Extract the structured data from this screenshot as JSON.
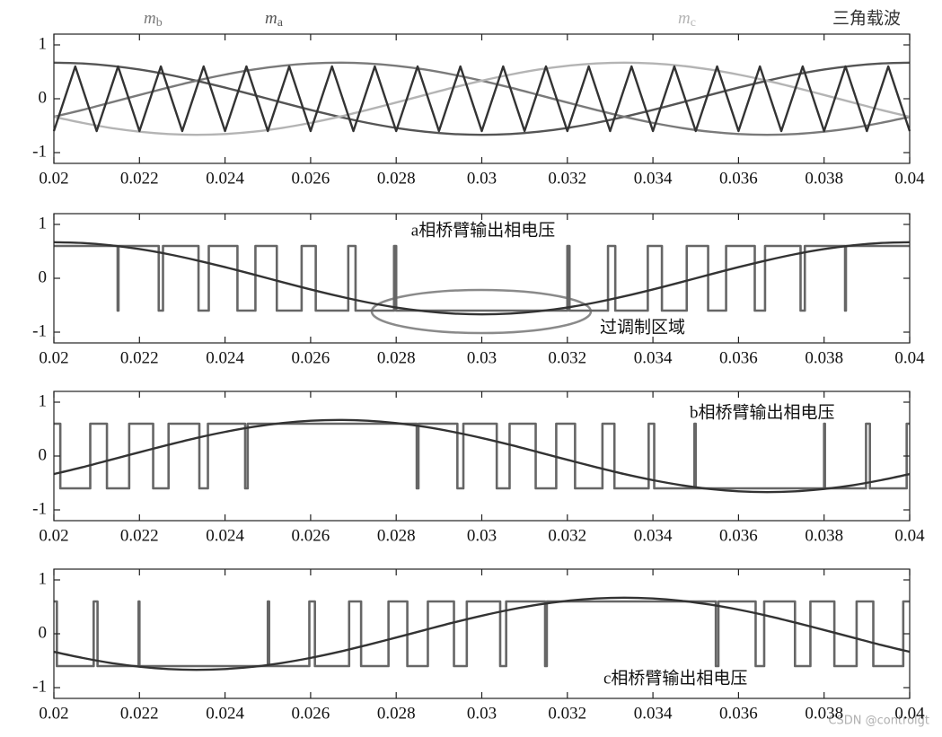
{
  "chart_data": [
    {
      "type": "line",
      "x": [
        0.02,
        0.02067,
        0.02133,
        0.022,
        0.02267,
        0.02333,
        0.024,
        0.02467,
        0.02533,
        0.026,
        0.02667,
        0.02733,
        0.028,
        0.02867,
        0.02933,
        0.03,
        0.03067,
        0.03133,
        0.032,
        0.03267,
        0.03333,
        0.034,
        0.03467,
        0.03533,
        0.036,
        0.03667,
        0.03733,
        0.038,
        0.03867,
        0.03933,
        0.04
      ],
      "series": [
        {
          "name": "ma",
          "color": "#555555",
          "values": [
            0.67,
            0.655,
            0.612,
            0.542,
            0.448,
            0.335,
            0.207,
            0.07,
            -0.07,
            -0.207,
            -0.335,
            -0.448,
            -0.542,
            -0.612,
            -0.655,
            -0.67,
            -0.655,
            -0.612,
            -0.542,
            -0.448,
            -0.335,
            -0.207,
            -0.07,
            0.07,
            0.207,
            0.335,
            0.448,
            0.542,
            0.612,
            0.655,
            0.67
          ]
        },
        {
          "name": "mb",
          "color": "#7a7a7a",
          "values": [
            -0.335,
            -0.207,
            -0.07,
            0.07,
            0.207,
            0.335,
            0.448,
            0.542,
            0.612,
            0.655,
            0.67,
            0.655,
            0.612,
            0.542,
            0.448,
            0.335,
            0.207,
            0.07,
            -0.07,
            -0.207,
            -0.335,
            -0.448,
            -0.542,
            -0.612,
            -0.655,
            -0.67,
            -0.655,
            -0.612,
            -0.542,
            -0.448,
            -0.335
          ]
        },
        {
          "name": "mc",
          "color": "#b4b4b4",
          "values": [
            -0.335,
            -0.448,
            -0.542,
            -0.612,
            -0.655,
            -0.67,
            -0.655,
            -0.612,
            -0.542,
            -0.448,
            -0.335,
            -0.207,
            -0.07,
            0.07,
            0.207,
            0.335,
            0.448,
            0.542,
            0.612,
            0.655,
            0.67,
            0.655,
            0.612,
            0.542,
            0.448,
            0.335,
            0.207,
            0.07,
            -0.07,
            -0.207,
            -0.335
          ]
        },
        {
          "name": "三角载波",
          "color": "#333333",
          "x": [
            0.02,
            0.0205,
            0.021,
            0.0215,
            0.022,
            0.0225,
            0.023,
            0.0235,
            0.024,
            0.0245,
            0.025,
            0.0255,
            0.026,
            0.0265,
            0.027,
            0.0275,
            0.028,
            0.0285,
            0.029,
            0.0295,
            0.03,
            0.0305,
            0.031,
            0.0315,
            0.032,
            0.0325,
            0.033,
            0.0335,
            0.034,
            0.0345,
            0.035,
            0.0355,
            0.036,
            0.0365,
            0.037,
            0.0375,
            0.038,
            0.0385,
            0.039,
            0.0395,
            0.04
          ],
          "values": [
            -0.6,
            0.6,
            -0.6,
            0.6,
            -0.6,
            0.6,
            -0.6,
            0.6,
            -0.6,
            0.6,
            -0.6,
            0.6,
            -0.6,
            0.6,
            -0.6,
            0.6,
            -0.6,
            0.6,
            -0.6,
            0.6,
            -0.6,
            0.6,
            -0.6,
            0.6,
            -0.6,
            0.6,
            -0.6,
            0.6,
            -0.6,
            0.6,
            -0.6,
            0.6,
            -0.6,
            0.6,
            -0.6,
            0.6,
            -0.6,
            0.6,
            -0.6,
            0.6,
            -0.6
          ]
        }
      ],
      "xlim": [
        0.02,
        0.04
      ],
      "ylim": [
        -1.2,
        1.2
      ],
      "xticks": [
        0.02,
        0.022,
        0.024,
        0.026,
        0.028,
        0.03,
        0.032,
        0.034,
        0.036,
        0.038,
        0.04
      ],
      "yticks": [
        -1,
        0,
        1
      ]
    },
    {
      "type": "line",
      "annotations": [
        "a相桥臂输出相电压",
        "过调制区域"
      ],
      "x": [
        0.02,
        0.02067,
        0.02133,
        0.022,
        0.02267,
        0.02333,
        0.024,
        0.02467,
        0.02533,
        0.026,
        0.02667,
        0.02733,
        0.028,
        0.02867,
        0.02933,
        0.03,
        0.03067,
        0.03133,
        0.032,
        0.03267,
        0.03333,
        0.034,
        0.03467,
        0.03533,
        0.036,
        0.03667,
        0.03733,
        0.038,
        0.03867,
        0.03933,
        0.04
      ],
      "series": [
        {
          "color": "#666666",
          "step": true,
          "x": [
            0.02,
            0.02149,
            0.02151,
            0.02245,
            0.02255,
            0.02338,
            0.02362,
            0.02429,
            0.02471,
            0.02521,
            0.02579,
            0.02612,
            0.02688,
            0.02705,
            0.02795,
            0.028,
            0.032,
            0.03205,
            0.03295,
            0.03312,
            0.03388,
            0.03421,
            0.03479,
            0.03529,
            0.03571,
            0.03638,
            0.03662,
            0.03745,
            0.03755,
            0.03849,
            0.03851,
            0.04
          ],
          "values": [
            0.6,
            -0.6,
            0.6,
            -0.6,
            0.6,
            -0.6,
            0.6,
            -0.6,
            0.6,
            -0.6,
            0.6,
            -0.6,
            0.6,
            -0.6,
            0.6,
            -0.6,
            0.6,
            -0.6,
            0.6,
            -0.6,
            0.6,
            -0.6,
            0.6,
            -0.6,
            0.6,
            -0.6,
            0.6,
            -0.6,
            0.6,
            -0.6,
            0.6,
            0.6
          ]
        },
        {
          "color": "#333333",
          "values": [
            0.67,
            0.655,
            0.612,
            0.542,
            0.448,
            0.335,
            0.207,
            0.07,
            -0.07,
            -0.207,
            -0.335,
            -0.448,
            -0.542,
            -0.612,
            -0.655,
            -0.67,
            -0.655,
            -0.612,
            -0.542,
            -0.448,
            -0.335,
            -0.207,
            -0.07,
            0.07,
            0.207,
            0.335,
            0.448,
            0.542,
            0.612,
            0.655,
            0.67
          ]
        }
      ],
      "xlim": [
        0.02,
        0.04
      ],
      "ylim": [
        -1.2,
        1.2
      ],
      "xticks": [
        0.02,
        0.022,
        0.024,
        0.026,
        0.028,
        0.03,
        0.032,
        0.034,
        0.036,
        0.038,
        0.04
      ],
      "yticks": [
        -1,
        0,
        1
      ]
    },
    {
      "type": "line",
      "annotations": [
        "b相桥臂输出相电压"
      ],
      "x": [
        0.02,
        0.02067,
        0.02133,
        0.022,
        0.02267,
        0.02333,
        0.024,
        0.02467,
        0.02533,
        0.026,
        0.02667,
        0.02733,
        0.028,
        0.02867,
        0.02933,
        0.03,
        0.03067,
        0.03133,
        0.032,
        0.03267,
        0.03333,
        0.034,
        0.03467,
        0.03533,
        0.036,
        0.03667,
        0.03733,
        0.038,
        0.03867,
        0.03933,
        0.04
      ],
      "series": [
        {
          "color": "#666666",
          "step": true,
          "x": [
            0.02,
            0.02015,
            0.02085,
            0.02124,
            0.02176,
            0.02232,
            0.02268,
            0.0234,
            0.0236,
            0.02447,
            0.02453,
            0.02848,
            0.02852,
            0.02943,
            0.02957,
            0.03035,
            0.03065,
            0.03126,
            0.03174,
            0.03218,
            0.03282,
            0.0331,
            0.0339,
            0.03403,
            0.03497,
            0.035,
            0.038,
            0.03802,
            0.03898,
            0.03907,
            0.03993,
            0.04
          ],
          "values": [
            0.6,
            -0.6,
            0.6,
            -0.6,
            0.6,
            -0.6,
            0.6,
            -0.6,
            0.6,
            -0.6,
            0.6,
            -0.6,
            0.6,
            -0.6,
            0.6,
            -0.6,
            0.6,
            -0.6,
            0.6,
            -0.6,
            0.6,
            -0.6,
            0.6,
            -0.6,
            0.6,
            -0.6,
            0.6,
            -0.6,
            0.6,
            -0.6,
            0.6,
            0.6
          ]
        },
        {
          "color": "#333333",
          "values": [
            -0.335,
            -0.207,
            -0.07,
            0.07,
            0.207,
            0.335,
            0.448,
            0.542,
            0.612,
            0.655,
            0.67,
            0.655,
            0.612,
            0.542,
            0.448,
            0.335,
            0.207,
            0.07,
            -0.07,
            -0.207,
            -0.335,
            -0.448,
            -0.542,
            -0.612,
            -0.655,
            -0.67,
            -0.655,
            -0.612,
            -0.542,
            -0.448,
            -0.335
          ]
        }
      ],
      "xlim": [
        0.02,
        0.04
      ],
      "ylim": [
        -1.2,
        1.2
      ],
      "xticks": [
        0.02,
        0.022,
        0.024,
        0.026,
        0.028,
        0.03,
        0.032,
        0.034,
        0.036,
        0.038,
        0.04
      ],
      "yticks": [
        -1,
        0,
        1
      ]
    },
    {
      "type": "line",
      "annotations": [
        "c相桥臂输出相电压"
      ],
      "x": [
        0.02,
        0.02067,
        0.02133,
        0.022,
        0.02267,
        0.02333,
        0.024,
        0.02467,
        0.02533,
        0.026,
        0.02667,
        0.02733,
        0.028,
        0.02867,
        0.02933,
        0.03,
        0.03067,
        0.03133,
        0.032,
        0.03267,
        0.03333,
        0.034,
        0.03467,
        0.03533,
        0.036,
        0.03667,
        0.03733,
        0.038,
        0.03867,
        0.03933,
        0.04
      ],
      "series": [
        {
          "color": "#666666",
          "step": true,
          "x": [
            0.02,
            0.02007,
            0.02093,
            0.02102,
            0.02198,
            0.022,
            0.025,
            0.02503,
            0.02597,
            0.0261,
            0.0269,
            0.02718,
            0.02782,
            0.02826,
            0.02874,
            0.02935,
            0.02965,
            0.03043,
            0.03057,
            0.03148,
            0.03152,
            0.03547,
            0.03553,
            0.0364,
            0.0366,
            0.03732,
            0.03768,
            0.03824,
            0.03876,
            0.03915,
            0.03985,
            0.04
          ],
          "values": [
            0.6,
            -0.6,
            0.6,
            -0.6,
            0.6,
            -0.6,
            0.6,
            -0.6,
            0.6,
            -0.6,
            0.6,
            -0.6,
            0.6,
            -0.6,
            0.6,
            -0.6,
            0.6,
            -0.6,
            0.6,
            -0.6,
            0.6,
            -0.6,
            0.6,
            -0.6,
            0.6,
            -0.6,
            0.6,
            -0.6,
            0.6,
            -0.6,
            0.6,
            0.6
          ]
        },
        {
          "color": "#333333",
          "values": [
            -0.335,
            -0.448,
            -0.542,
            -0.612,
            -0.655,
            -0.67,
            -0.655,
            -0.612,
            -0.542,
            -0.448,
            -0.335,
            -0.207,
            -0.07,
            0.07,
            0.207,
            0.335,
            0.448,
            0.542,
            0.612,
            0.655,
            0.67,
            0.655,
            0.612,
            0.542,
            0.448,
            0.335,
            0.207,
            0.07,
            -0.07,
            -0.207,
            -0.335
          ]
        }
      ],
      "xlim": [
        0.02,
        0.04
      ],
      "ylim": [
        -1.2,
        1.2
      ],
      "xticks": [
        0.02,
        0.022,
        0.024,
        0.026,
        0.028,
        0.03,
        0.032,
        0.034,
        0.036,
        0.038,
        0.04
      ],
      "yticks": [
        -1,
        0,
        1
      ]
    }
  ],
  "watermark": "CSDN @controlgt"
}
